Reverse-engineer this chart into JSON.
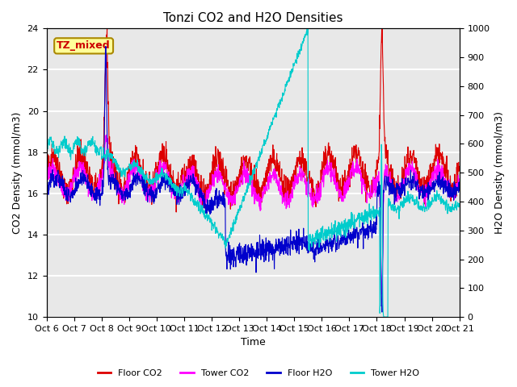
{
  "title": "Tonzi CO2 and H2O Densities",
  "xlabel": "Time",
  "ylabel_left": "CO2 Density (mmol/m3)",
  "ylabel_right": "H2O Density (mmol/m3)",
  "ylim_left": [
    10,
    24
  ],
  "ylim_right": [
    0,
    1000
  ],
  "yticks_left": [
    10,
    12,
    14,
    16,
    18,
    20,
    22,
    24
  ],
  "yticks_right": [
    0,
    100,
    200,
    300,
    400,
    500,
    600,
    700,
    800,
    900,
    1000
  ],
  "x_tick_labels": [
    "Oct 6",
    "Oct 7",
    "Oct 8",
    "Oct 9",
    "Oct 10",
    "Oct 11",
    "Oct 12",
    "Oct 13",
    "Oct 14",
    "Oct 15",
    "Oct 16",
    "Oct 17",
    "Oct 18",
    "Oct 19",
    "Oct 20",
    "Oct 21"
  ],
  "annotation_text": "TZ_mixed",
  "annotation_color": "#cc0000",
  "annotation_bg": "#ffff99",
  "annotation_border": "#aa8800",
  "colors": {
    "floor_co2": "#dd0000",
    "tower_co2": "#ff00ff",
    "floor_h2o": "#0000cc",
    "tower_h2o": "#00cccc"
  },
  "legend_labels": [
    "Floor CO2",
    "Tower CO2",
    "Floor H2O",
    "Tower H2O"
  ],
  "plot_bg": "#e8e8e8",
  "grid_color": "#ffffff",
  "n_points": 1500
}
